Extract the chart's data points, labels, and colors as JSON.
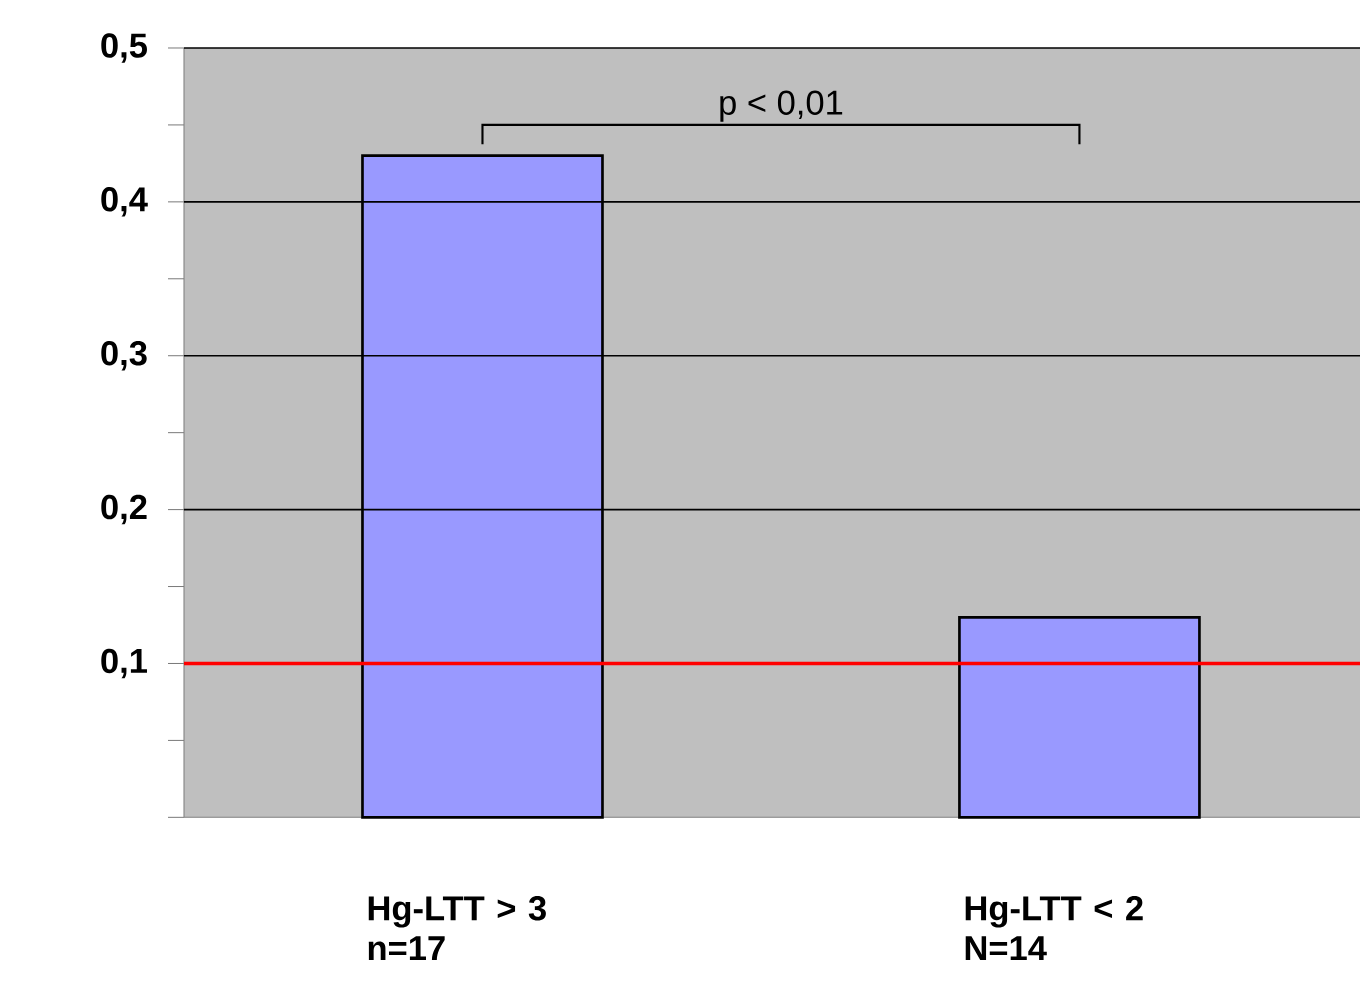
{
  "chart_data": {
    "type": "bar",
    "categories": [
      "Hg-LTT > 3 n=17",
      "Hg-LTT < 2 N=14"
    ],
    "values": [
      0.43,
      0.13
    ],
    "color": "#9999ff",
    "ylim": [
      0,
      0.5
    ],
    "yticks": [
      {
        "value": 0,
        "label": null
      },
      {
        "value": 0.05,
        "label": null
      },
      {
        "value": 0.1,
        "label": "0,1"
      },
      {
        "value": 0.15,
        "label": null
      },
      {
        "value": 0.2,
        "label": "0,2"
      },
      {
        "value": 0.25,
        "label": null
      },
      {
        "value": 0.3,
        "label": "0,3"
      },
      {
        "value": 0.35,
        "label": null
      },
      {
        "value": 0.4,
        "label": "0,4"
      },
      {
        "value": 0.45,
        "label": null
      },
      {
        "value": 0.5,
        "label": "0,5"
      }
    ],
    "grid": "y",
    "ref_lines": [
      {
        "axis": "y",
        "value": 0.1,
        "color": "#ff0000"
      }
    ],
    "annotations": [
      "p < 0,01"
    ]
  }
}
